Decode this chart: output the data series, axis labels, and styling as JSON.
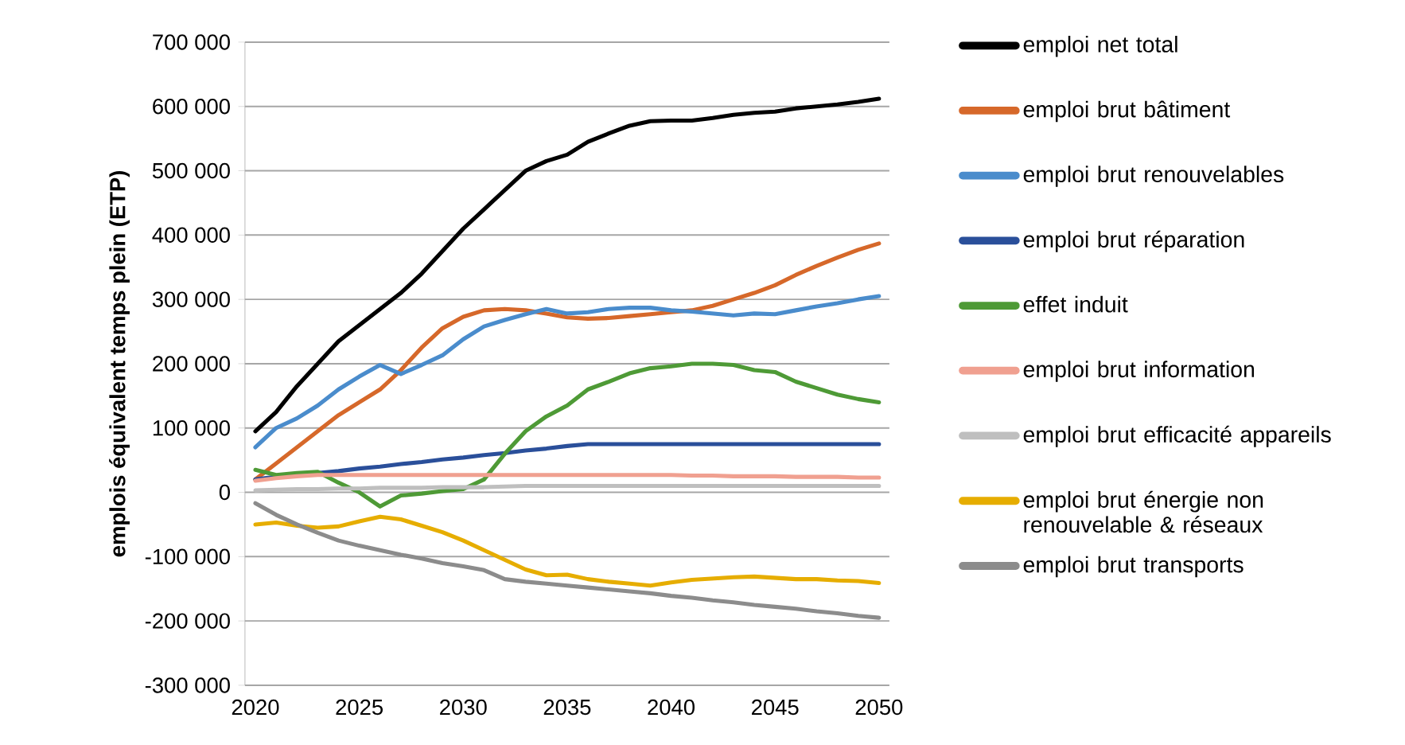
{
  "chart_data": {
    "type": "line",
    "ylabel": "emplois équivalent temps plein (ETP)",
    "x": [
      2020,
      2021,
      2022,
      2023,
      2024,
      2025,
      2026,
      2027,
      2028,
      2029,
      2030,
      2031,
      2032,
      2033,
      2034,
      2035,
      2036,
      2037,
      2038,
      2039,
      2040,
      2041,
      2042,
      2043,
      2044,
      2045,
      2046,
      2047,
      2048,
      2049,
      2050
    ],
    "xlim": [
      2019.5,
      2050.5
    ],
    "xticks": [
      2020,
      2025,
      2030,
      2035,
      2040,
      2045,
      2050
    ],
    "ylim": [
      -300000,
      700000
    ],
    "yticks": [
      {
        "value": -300000,
        "label": "-300 000"
      },
      {
        "value": -200000,
        "label": "-200 000"
      },
      {
        "value": -100000,
        "label": "-100 000"
      },
      {
        "value": 0,
        "label": "0"
      },
      {
        "value": 100000,
        "label": "100 000"
      },
      {
        "value": 200000,
        "label": "200 000"
      },
      {
        "value": 300000,
        "label": "300 000"
      },
      {
        "value": 400000,
        "label": "400 000"
      },
      {
        "value": 500000,
        "label": "500 000"
      },
      {
        "value": 600000,
        "label": "600 000"
      },
      {
        "value": 700000,
        "label": "700 000"
      }
    ],
    "grid": "y",
    "legend": "right",
    "series": [
      {
        "name": "emploi net total",
        "color": "#000000",
        "values": [
          95000,
          125000,
          165000,
          200000,
          235000,
          260000,
          285000,
          310000,
          340000,
          375000,
          410000,
          440000,
          470000,
          500000,
          515000,
          525000,
          545000,
          558000,
          570000,
          577000,
          578000,
          578000,
          582000,
          587000,
          590000,
          592000,
          597000,
          600000,
          603000,
          607000,
          612000
        ]
      },
      {
        "name": "emploi brut bâtiment",
        "color": "#d6682a",
        "values": [
          20000,
          45000,
          70000,
          95000,
          120000,
          140000,
          160000,
          190000,
          225000,
          255000,
          273000,
          283000,
          285000,
          283000,
          278000,
          272000,
          270000,
          271000,
          274000,
          277000,
          280000,
          283000,
          290000,
          300000,
          310000,
          322000,
          338000,
          352000,
          365000,
          377000,
          387000
        ]
      },
      {
        "name": "emploi brut renouvelables",
        "color": "#4a8ccc",
        "values": [
          70000,
          100000,
          115000,
          135000,
          160000,
          180000,
          198000,
          184000,
          198000,
          213000,
          238000,
          258000,
          268000,
          277000,
          285000,
          278000,
          280000,
          285000,
          287000,
          287000,
          283000,
          281000,
          278000,
          275000,
          278000,
          277000,
          283000,
          289000,
          294000,
          300000,
          305000
        ]
      },
      {
        "name": "emploi brut réparation",
        "color": "#2a4f9a",
        "values": [
          20000,
          24000,
          27000,
          30000,
          33000,
          37000,
          40000,
          44000,
          47000,
          51000,
          54000,
          58000,
          61000,
          65000,
          68000,
          72000,
          75000,
          75000,
          75000,
          75000,
          75000,
          75000,
          75000,
          75000,
          75000,
          75000,
          75000,
          75000,
          75000,
          75000,
          75000
        ]
      },
      {
        "name": "effet induit",
        "color": "#4e9a36",
        "values": [
          35000,
          27000,
          30000,
          32000,
          15000,
          0,
          -22000,
          -5000,
          -2000,
          2000,
          5000,
          20000,
          60000,
          95000,
          118000,
          135000,
          160000,
          172000,
          185000,
          193000,
          196000,
          200000,
          200000,
          198000,
          190000,
          187000,
          172000,
          162000,
          152000,
          145000,
          140000
        ]
      },
      {
        "name": "emploi brut information",
        "color": "#f0a090",
        "values": [
          18000,
          22000,
          25000,
          27000,
          27000,
          27000,
          27000,
          27000,
          27000,
          27000,
          27000,
          27000,
          27000,
          27000,
          27000,
          27000,
          27000,
          27000,
          27000,
          27000,
          27000,
          26000,
          26000,
          25000,
          25000,
          25000,
          24000,
          24000,
          24000,
          23000,
          23000
        ]
      },
      {
        "name": "emploi brut efficacité appareils",
        "color": "#bfbfbf",
        "values": [
          3000,
          4000,
          5000,
          5000,
          6000,
          6000,
          7000,
          7000,
          7000,
          8000,
          8000,
          8000,
          9000,
          10000,
          10000,
          10000,
          10000,
          10000,
          10000,
          10000,
          10000,
          10000,
          10000,
          10000,
          10000,
          10000,
          10000,
          10000,
          10000,
          10000,
          10000
        ]
      },
      {
        "name": "emploi brut énergie non renouvelable & réseaux",
        "color": "#e6ad00",
        "values": [
          -50000,
          -47000,
          -52000,
          -55000,
          -53000,
          -45000,
          -38000,
          -42000,
          -52000,
          -62000,
          -75000,
          -90000,
          -105000,
          -120000,
          -129000,
          -128000,
          -135000,
          -139000,
          -142000,
          -145000,
          -140000,
          -136000,
          -134000,
          -132000,
          -131000,
          -133000,
          -135000,
          -135000,
          -137000,
          -138000,
          -141000
        ]
      },
      {
        "name": "emploi brut transports",
        "color": "#8c8c8c",
        "values": [
          -17000,
          -35000,
          -50000,
          -63000,
          -75000,
          -83000,
          -90000,
          -97000,
          -103000,
          -110000,
          -115000,
          -121000,
          -135000,
          -139000,
          -142000,
          -145000,
          -148000,
          -151000,
          -154000,
          -157000,
          -161000,
          -164000,
          -168000,
          -171000,
          -175000,
          -178000,
          -181000,
          -185000,
          -188000,
          -192000,
          -195000
        ]
      }
    ]
  }
}
